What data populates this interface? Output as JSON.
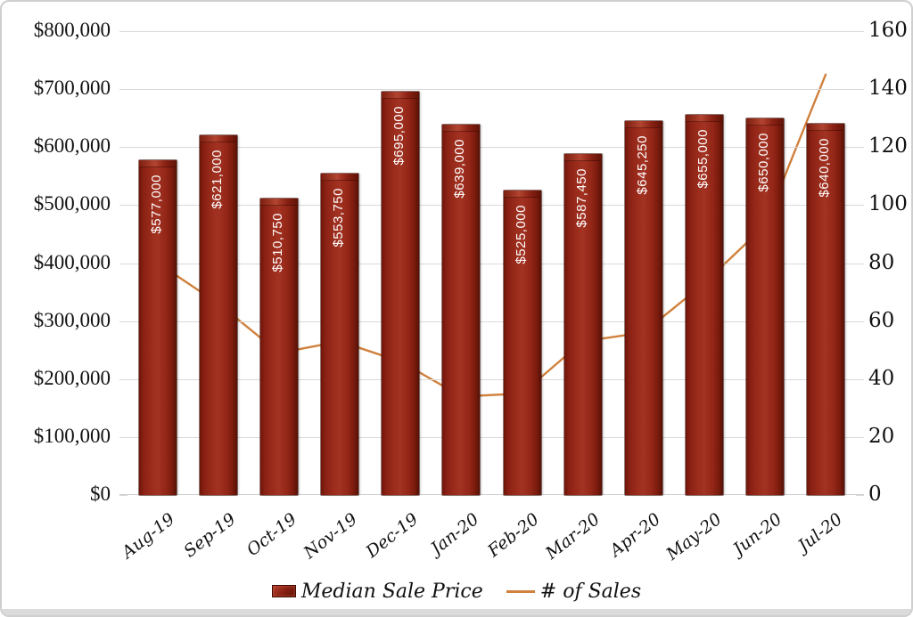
{
  "frame": {
    "background": "#FFFFFF",
    "border_color": "#CFCFCF",
    "footer_strip_color": "#DBDBDB"
  },
  "chart_data": {
    "type": "combo-bar-line",
    "categories": [
      "Aug-19",
      "Sep-19",
      "Oct-19",
      "Nov-19",
      "Dec-19",
      "Jan-20",
      "Feb-20",
      "Mar-20",
      "Apr-20",
      "May-20",
      "Jun-20",
      "Jul-20"
    ],
    "series": [
      {
        "name": "Median Sale Price",
        "type": "bar",
        "axis": "left",
        "color": "#8E2316",
        "values": [
          577000,
          621000,
          510750,
          553750,
          695000,
          639000,
          525000,
          587450,
          645250,
          655000,
          650000,
          640000
        ],
        "labels": [
          "$577,000",
          "$621,000",
          "$510,750",
          "$553,750",
          "$695,000",
          "$639,000",
          "$525,000",
          "$587,450",
          "$645,250",
          "$655,000",
          "$650,000",
          "$640,000"
        ]
      },
      {
        "name": "# of Sales",
        "type": "line",
        "axis": "right",
        "color": "#D0813D",
        "values": [
          80,
          66,
          49,
          53,
          46,
          34,
          35,
          53,
          56,
          73,
          93,
          145
        ]
      }
    ],
    "left_axis": {
      "min": 0,
      "max": 800000,
      "tick_labels": [
        "$800,000",
        "$700,000",
        "$600,000",
        "$500,000",
        "$400,000",
        "$300,000",
        "$200,000",
        "$100,000",
        "$0"
      ]
    },
    "right_axis": {
      "min": 0,
      "max": 160,
      "tick_labels": [
        "160",
        "140",
        "120",
        "100",
        "80",
        "60",
        "40",
        "20",
        "0"
      ]
    },
    "grid": {
      "horizontal": true,
      "color": "#D9D9D9"
    },
    "legend": {
      "position": "bottom",
      "entries": [
        "Median Sale Price",
        "# of Sales"
      ]
    }
  }
}
